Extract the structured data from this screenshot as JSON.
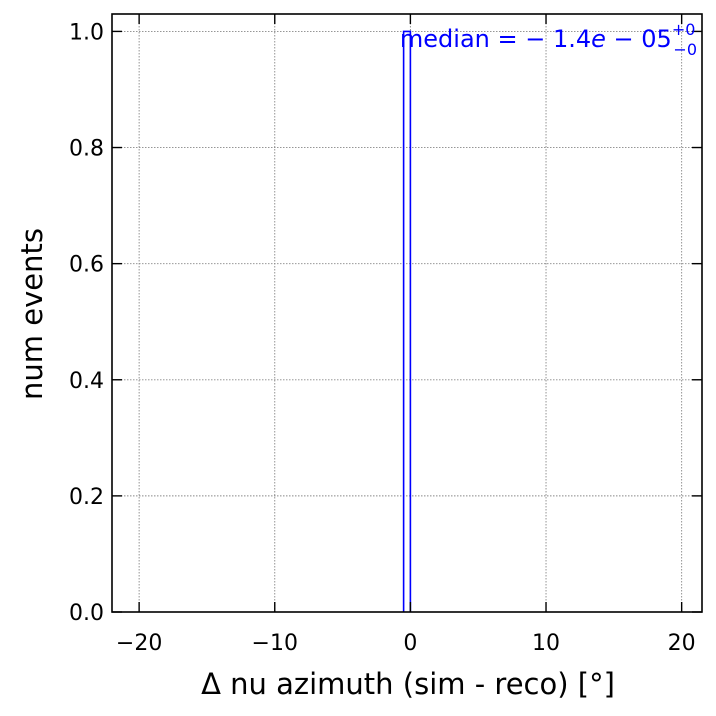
{
  "chart_data": {
    "type": "bar",
    "title": "",
    "xlabel": "Δ nu azimuth (sim - reco) [°]",
    "ylabel": "num events",
    "xlim": [
      -22,
      21.5
    ],
    "ylim": [
      0,
      1.03
    ],
    "xticks": [
      -20,
      -10,
      0,
      10,
      20
    ],
    "xtick_labels": [
      "−20",
      "−10",
      "0",
      "10",
      "20"
    ],
    "yticks": [
      0.0,
      0.2,
      0.4,
      0.6,
      0.8,
      1.0
    ],
    "ytick_labels": [
      "0.0",
      "0.2",
      "0.4",
      "0.6",
      "0.8",
      "1.0"
    ],
    "grid": true,
    "histtype": "step",
    "bins": [
      {
        "x0": -0.5,
        "x1": 0.0,
        "value": 1.0
      }
    ],
    "color": "#0000ff",
    "annotation": {
      "prefix": "median",
      "eq": " = − 1.4",
      "e": "e",
      "rest": " − 05",
      "sup": "+0",
      "sub": "−0",
      "position": "top-right"
    }
  }
}
